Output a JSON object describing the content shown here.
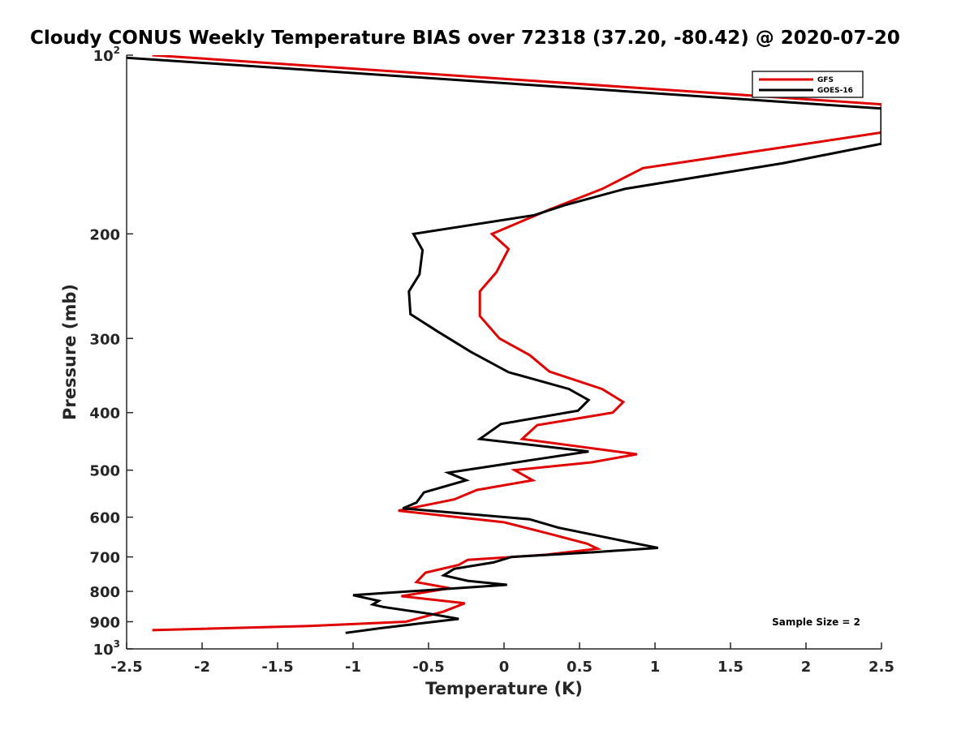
{
  "chart_data": {
    "type": "line",
    "title": "Cloudy CONUS Weekly Temperature BIAS over 72318 (37.20, -80.42) @ 2020-07-20",
    "xlabel": "Temperature (K)",
    "ylabel": "Pressure (mb)",
    "xlim": [
      -2.5,
      2.5
    ],
    "ylim": [
      100,
      1000
    ],
    "y_scale": "log",
    "y_reversed": true,
    "grid": false,
    "legend_position": "top-right",
    "x_ticks": [
      "-2.5",
      "-2",
      "-1.5",
      "-1",
      "-0.5",
      "0",
      "0.5",
      "1",
      "1.5",
      "2",
      "2.5"
    ],
    "x_tick_values": [
      -2.5,
      -2,
      -1.5,
      -1,
      -0.5,
      0,
      0.5,
      1,
      1.5,
      2,
      2.5
    ],
    "y_ticks": [
      {
        "value": 100,
        "base": "10",
        "exp": "2"
      },
      {
        "value": 200,
        "base": "200",
        "exp": ""
      },
      {
        "value": 300,
        "base": "300",
        "exp": ""
      },
      {
        "value": 400,
        "base": "400",
        "exp": ""
      },
      {
        "value": 500,
        "base": "500",
        "exp": ""
      },
      {
        "value": 600,
        "base": "600",
        "exp": ""
      },
      {
        "value": 700,
        "base": "700",
        "exp": ""
      },
      {
        "value": 800,
        "base": "800",
        "exp": ""
      },
      {
        "value": 900,
        "base": "900",
        "exp": ""
      },
      {
        "value": 1000,
        "base": "10",
        "exp": "3"
      }
    ],
    "annotation": "Sample Size = 2",
    "series": [
      {
        "name": "GFS",
        "color": "#e00000",
        "points": [
          [
            -2.33,
            100
          ],
          [
            2.5,
            121
          ],
          [
            2.5,
            135
          ],
          [
            0.92,
            155
          ],
          [
            0.65,
            168
          ],
          [
            0.3,
            182
          ],
          [
            -0.08,
            200
          ],
          [
            0.03,
            212
          ],
          [
            -0.05,
            232
          ],
          [
            -0.16,
            250
          ],
          [
            -0.16,
            275
          ],
          [
            -0.03,
            300
          ],
          [
            0.17,
            320
          ],
          [
            0.3,
            341
          ],
          [
            0.65,
            365
          ],
          [
            0.79,
            384
          ],
          [
            0.72,
            400
          ],
          [
            0.22,
            420
          ],
          [
            0.12,
            443
          ],
          [
            0.88,
            470
          ],
          [
            0.58,
            485
          ],
          [
            0.07,
            500
          ],
          [
            0.19,
            520
          ],
          [
            -0.18,
            540
          ],
          [
            -0.33,
            560
          ],
          [
            -0.7,
            585
          ],
          [
            0.0,
            612
          ],
          [
            0.3,
            640
          ],
          [
            0.55,
            665
          ],
          [
            0.62,
            678
          ],
          [
            0.28,
            694
          ],
          [
            -0.24,
            708
          ],
          [
            -0.3,
            722
          ],
          [
            -0.52,
            744
          ],
          [
            -0.58,
            772
          ],
          [
            -0.36,
            790
          ],
          [
            -0.68,
            815
          ],
          [
            -0.26,
            838
          ],
          [
            -0.4,
            865
          ],
          [
            -0.65,
            900
          ],
          [
            -1.29,
            915
          ],
          [
            -2.33,
            930
          ]
        ]
      },
      {
        "name": "GOES-16",
        "color": "#000000",
        "points": [
          [
            -2.5,
            101
          ],
          [
            2.5,
            123
          ],
          [
            2.5,
            141
          ],
          [
            1.85,
            152
          ],
          [
            0.8,
            168
          ],
          [
            0.4,
            179
          ],
          [
            0.2,
            186
          ],
          [
            -0.6,
            200
          ],
          [
            -0.54,
            213
          ],
          [
            -0.56,
            234
          ],
          [
            -0.63,
            250
          ],
          [
            -0.62,
            273
          ],
          [
            -0.44,
            292
          ],
          [
            -0.22,
            316
          ],
          [
            0.03,
            342
          ],
          [
            0.43,
            365
          ],
          [
            0.56,
            381
          ],
          [
            0.49,
            397
          ],
          [
            -0.02,
            418
          ],
          [
            -0.16,
            443
          ],
          [
            0.56,
            465
          ],
          [
            0.2,
            480
          ],
          [
            -0.37,
            505
          ],
          [
            -0.25,
            520
          ],
          [
            -0.53,
            545
          ],
          [
            -0.58,
            567
          ],
          [
            -0.67,
            580
          ],
          [
            0.17,
            605
          ],
          [
            0.36,
            625
          ],
          [
            0.88,
            665
          ],
          [
            1.02,
            676
          ],
          [
            0.6,
            687
          ],
          [
            0.05,
            700
          ],
          [
            -0.07,
            715
          ],
          [
            -0.33,
            733
          ],
          [
            -0.4,
            752
          ],
          [
            -0.24,
            768
          ],
          [
            0.02,
            780
          ],
          [
            -1.0,
            812
          ],
          [
            -0.83,
            830
          ],
          [
            -0.87,
            842
          ],
          [
            -0.8,
            850
          ],
          [
            -0.49,
            873
          ],
          [
            -0.3,
            890
          ],
          [
            -0.54,
            905
          ],
          [
            -0.82,
            923
          ],
          [
            -1.05,
            940
          ]
        ]
      }
    ]
  }
}
